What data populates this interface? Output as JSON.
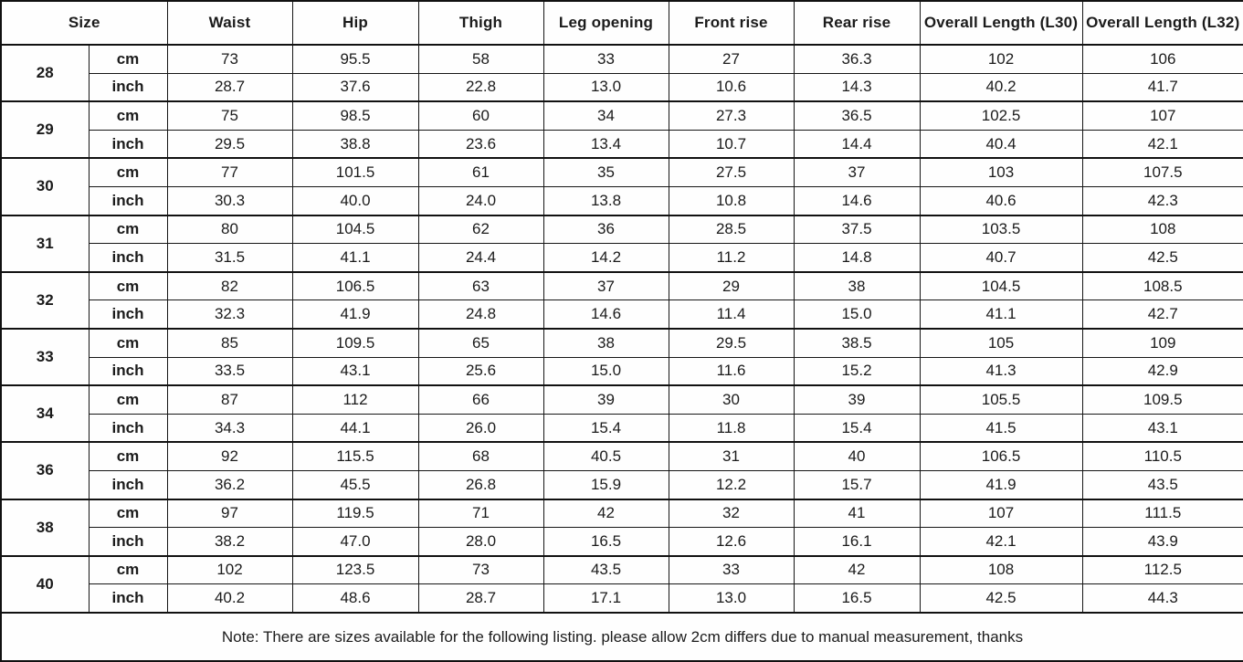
{
  "table": {
    "header": {
      "size_label": "Size",
      "columns": [
        "Waist",
        "Hip",
        "Thigh",
        "Leg opening",
        "Front rise",
        "Rear rise",
        "Overall Length (L30)",
        "Overall Length (L32)"
      ]
    },
    "unit_labels": {
      "cm": "cm",
      "inch": "inch"
    },
    "rows": [
      {
        "size": "28",
        "cm": [
          "73",
          "95.5",
          "58",
          "33",
          "27",
          "36.3",
          "102",
          "106"
        ],
        "inch": [
          "28.7",
          "37.6",
          "22.8",
          "13.0",
          "10.6",
          "14.3",
          "40.2",
          "41.7"
        ]
      },
      {
        "size": "29",
        "cm": [
          "75",
          "98.5",
          "60",
          "34",
          "27.3",
          "36.5",
          "102.5",
          "107"
        ],
        "inch": [
          "29.5",
          "38.8",
          "23.6",
          "13.4",
          "10.7",
          "14.4",
          "40.4",
          "42.1"
        ]
      },
      {
        "size": "30",
        "cm": [
          "77",
          "101.5",
          "61",
          "35",
          "27.5",
          "37",
          "103",
          "107.5"
        ],
        "inch": [
          "30.3",
          "40.0",
          "24.0",
          "13.8",
          "10.8",
          "14.6",
          "40.6",
          "42.3"
        ]
      },
      {
        "size": "31",
        "cm": [
          "80",
          "104.5",
          "62",
          "36",
          "28.5",
          "37.5",
          "103.5",
          "108"
        ],
        "inch": [
          "31.5",
          "41.1",
          "24.4",
          "14.2",
          "11.2",
          "14.8",
          "40.7",
          "42.5"
        ]
      },
      {
        "size": "32",
        "cm": [
          "82",
          "106.5",
          "63",
          "37",
          "29",
          "38",
          "104.5",
          "108.5"
        ],
        "inch": [
          "32.3",
          "41.9",
          "24.8",
          "14.6",
          "11.4",
          "15.0",
          "41.1",
          "42.7"
        ]
      },
      {
        "size": "33",
        "cm": [
          "85",
          "109.5",
          "65",
          "38",
          "29.5",
          "38.5",
          "105",
          "109"
        ],
        "inch": [
          "33.5",
          "43.1",
          "25.6",
          "15.0",
          "11.6",
          "15.2",
          "41.3",
          "42.9"
        ]
      },
      {
        "size": "34",
        "cm": [
          "87",
          "112",
          "66",
          "39",
          "30",
          "39",
          "105.5",
          "109.5"
        ],
        "inch": [
          "34.3",
          "44.1",
          "26.0",
          "15.4",
          "11.8",
          "15.4",
          "41.5",
          "43.1"
        ]
      },
      {
        "size": "36",
        "cm": [
          "92",
          "115.5",
          "68",
          "40.5",
          "31",
          "40",
          "106.5",
          "110.5"
        ],
        "inch": [
          "36.2",
          "45.5",
          "26.8",
          "15.9",
          "12.2",
          "15.7",
          "41.9",
          "43.5"
        ]
      },
      {
        "size": "38",
        "cm": [
          "97",
          "119.5",
          "71",
          "42",
          "32",
          "41",
          "107",
          "111.5"
        ],
        "inch": [
          "38.2",
          "47.0",
          "28.0",
          "16.5",
          "12.6",
          "16.1",
          "42.1",
          "43.9"
        ]
      },
      {
        "size": "40",
        "cm": [
          "102",
          "123.5",
          "73",
          "43.5",
          "33",
          "42",
          "108",
          "112.5"
        ],
        "inch": [
          "40.2",
          "48.6",
          "28.7",
          "17.1",
          "13.0",
          "16.5",
          "42.5",
          "44.3"
        ]
      }
    ],
    "note": "Note: There are sizes available for the following listing. please allow 2cm differs due to manual measurement, thanks"
  },
  "colors": {
    "text": "#1b1b1b",
    "border": "#111111",
    "background": "#fefefe"
  }
}
